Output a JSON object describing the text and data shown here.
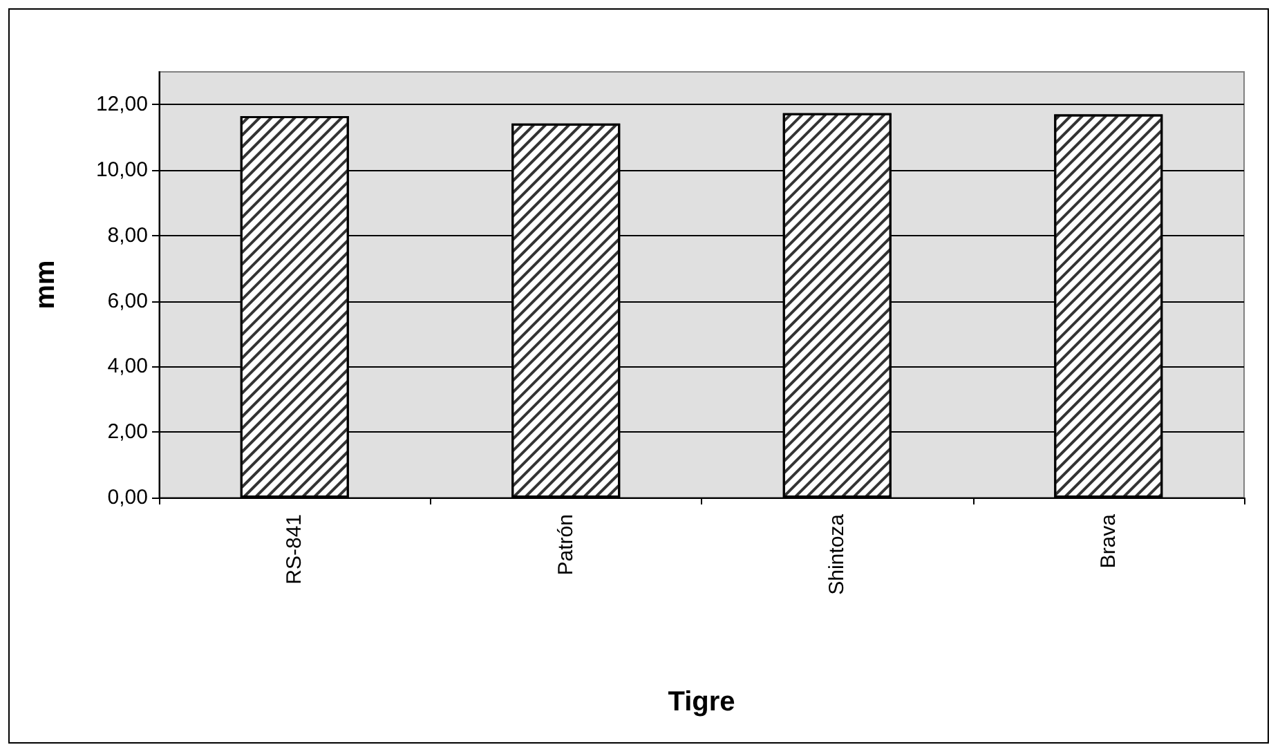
{
  "chart_data": {
    "type": "bar",
    "xlabel": "Tigre",
    "ylabel": "mm",
    "categories": [
      "RS-841",
      "Patrón",
      "Shintoza",
      "Brava"
    ],
    "values": [
      11.65,
      11.42,
      11.74,
      11.7
    ],
    "color": "#ffffff",
    "ylim": [
      0,
      13
    ],
    "yticks": [
      {
        "value": 0,
        "label": "0,00"
      },
      {
        "value": 2,
        "label": "2,00"
      },
      {
        "value": 4,
        "label": "4,00"
      },
      {
        "value": 6,
        "label": "6,00"
      },
      {
        "value": 8,
        "label": "8,00"
      },
      {
        "value": 10,
        "label": "10,00"
      },
      {
        "value": 12,
        "label": "12,00"
      }
    ],
    "grid": "y"
  }
}
